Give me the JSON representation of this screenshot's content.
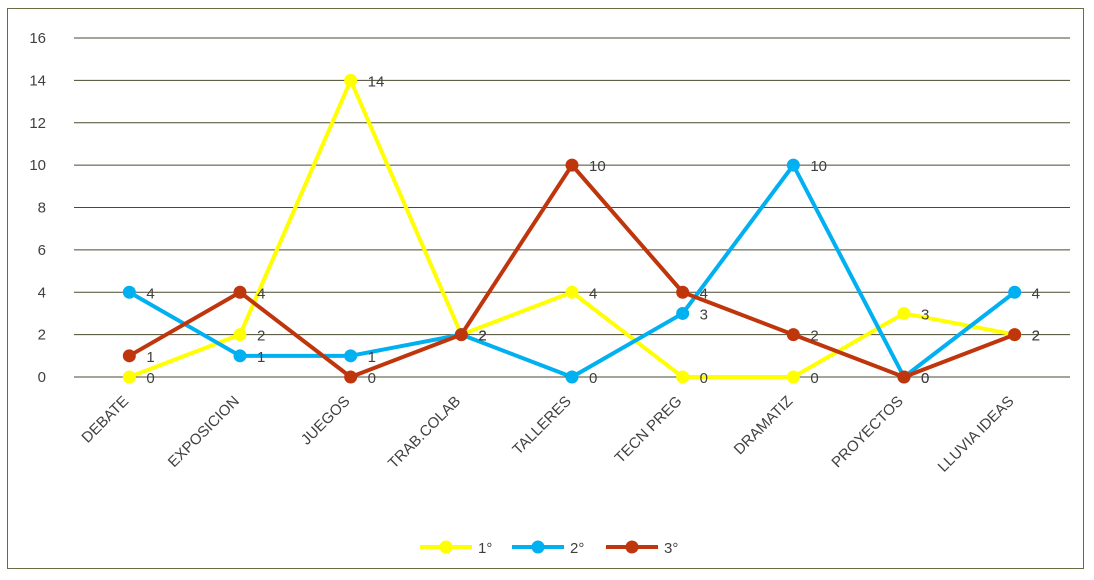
{
  "chart_data": {
    "type": "line",
    "title": "",
    "xlabel": "",
    "ylabel": "",
    "categories": [
      "DEBATE",
      "EXPOSICION",
      "JUEGOS",
      "TRAB.COLAB",
      "TALLERES",
      "TECN PREG",
      "DRAMATIZ",
      "PROYECTOS",
      "LLUVIA IDEAS"
    ],
    "ylim": [
      0,
      16
    ],
    "yticks": [
      0,
      2,
      4,
      6,
      8,
      10,
      12,
      14,
      16
    ],
    "grid": true,
    "legend_position": "bottom",
    "data_labels": true,
    "series": [
      {
        "name": "1°",
        "color": "#ffff00",
        "values": [
          0,
          2,
          14,
          2,
          4,
          0,
          0,
          3,
          2
        ]
      },
      {
        "name": "2°",
        "color": "#00b0f0",
        "values": [
          4,
          1,
          1,
          2,
          0,
          3,
          10,
          0,
          4
        ]
      },
      {
        "name": "3°",
        "color": "#c0360c",
        "values": [
          1,
          4,
          0,
          2,
          10,
          4,
          2,
          0,
          2
        ]
      }
    ]
  }
}
